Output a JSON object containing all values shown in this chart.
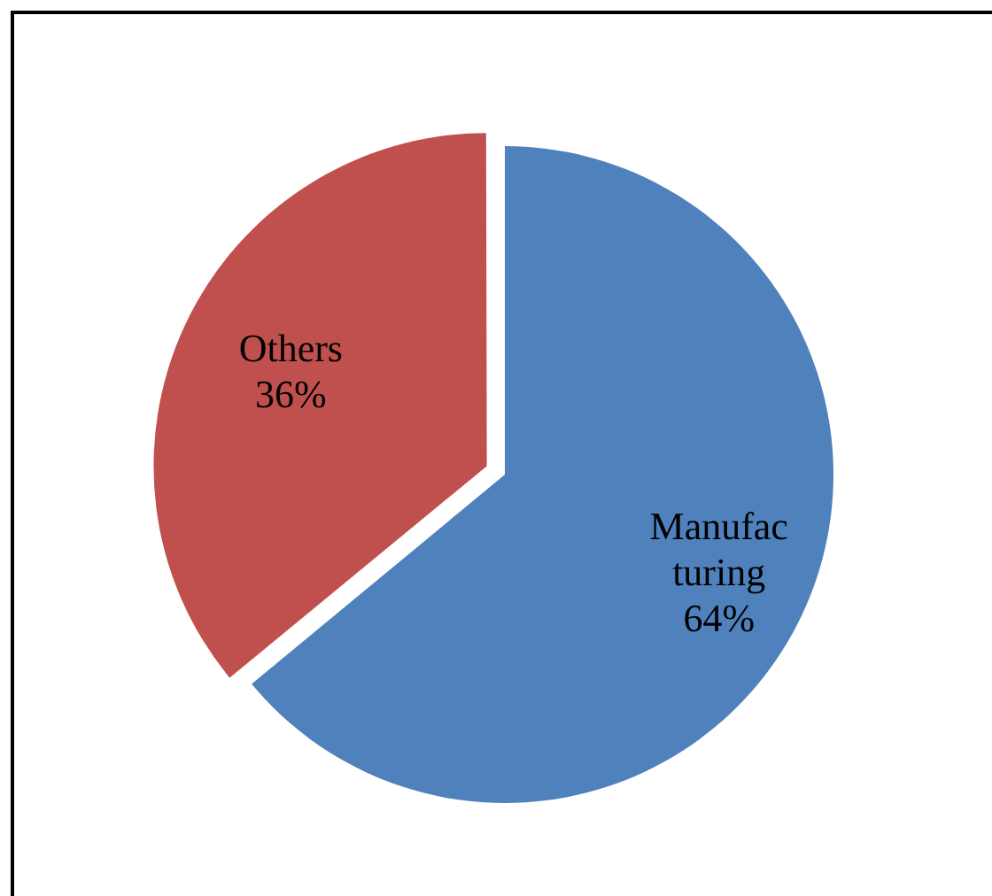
{
  "chart_data": {
    "type": "pie",
    "categories": [
      "Manufacturing",
      "Others"
    ],
    "values": [
      64,
      36
    ],
    "colors": [
      "#4f81bd",
      "#c0504d"
    ],
    "value_labels": [
      "64%",
      "36%"
    ],
    "legend": false
  }
}
